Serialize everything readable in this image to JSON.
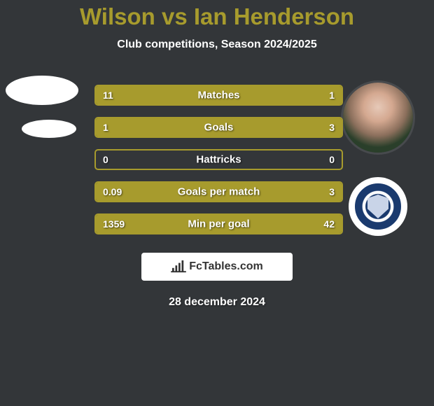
{
  "title": "Wilson vs Ian Henderson",
  "subtitle": "Club competitions, Season 2024/2025",
  "date": "28 december 2024",
  "attribution": "FcTables.com",
  "colors": {
    "accent": "#a79b2d",
    "background": "#333639",
    "text": "#ffffff",
    "bar_border": "#a79b2d",
    "bar_fill": "#a79b2d"
  },
  "stats": [
    {
      "label": "Matches",
      "left_val": "11",
      "right_val": "1",
      "left_pct": 91.7,
      "right_pct": 8.3
    },
    {
      "label": "Goals",
      "left_val": "1",
      "right_val": "3",
      "left_pct": 25.0,
      "right_pct": 75.0
    },
    {
      "label": "Hattricks",
      "left_val": "0",
      "right_val": "0",
      "left_pct": 0,
      "right_pct": 0
    },
    {
      "label": "Goals per match",
      "left_val": "0.09",
      "right_val": "3",
      "left_pct": 3.0,
      "right_pct": 97.0
    },
    {
      "label": "Min per goal",
      "left_val": "1359",
      "right_val": "42",
      "left_pct": 97.0,
      "right_pct": 3.0
    }
  ],
  "player_left": {
    "name": "Wilson"
  },
  "player_right": {
    "name": "Ian Henderson",
    "club": "Rochdale A.F.C."
  }
}
